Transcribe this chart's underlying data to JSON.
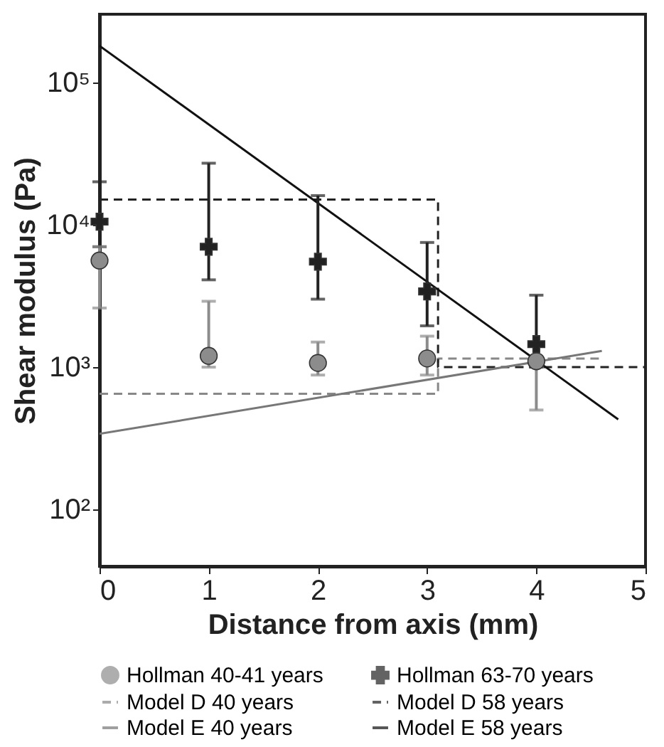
{
  "chart_data": {
    "type": "scatter",
    "xlabel": "Distance from axis (mm)",
    "ylabel": "Shear modulus (Pa)",
    "xlim": [
      0,
      5
    ],
    "xticks": [
      0,
      1,
      2,
      3,
      4,
      5
    ],
    "log": "y",
    "ylim": [
      40,
      300000
    ],
    "yticks": [
      {
        "value": 100,
        "label": "10²"
      },
      {
        "value": 1000,
        "label": "10³"
      },
      {
        "value": 10000,
        "label": "10⁴"
      },
      {
        "value": 100000,
        "label": "10⁵"
      }
    ],
    "grid": false,
    "legend": "bottom",
    "series": [
      {
        "name": "Hollman 40-41 years",
        "marker": "circle",
        "color": "#8c8c8c",
        "x": [
          0,
          1,
          2,
          3,
          4
        ],
        "values": [
          5600,
          1200,
          1070,
          1150,
          1100
        ],
        "errors": [
          [
            2600,
            7000
          ],
          [
            1000,
            2900
          ],
          [
            880,
            1500
          ],
          [
            880,
            1650
          ],
          [
            500,
            1400
          ]
        ]
      },
      {
        "name": "Hollman 63-70 years",
        "marker": "cross",
        "color": "#222222",
        "x": [
          0,
          1,
          2,
          3,
          4
        ],
        "values": [
          10500,
          7000,
          5500,
          3400,
          1450
        ],
        "errors": [
          [
            7000,
            20000
          ],
          [
            4100,
            27000
          ],
          [
            3000,
            16000
          ],
          [
            1950,
            7500
          ],
          [
            1000,
            3200
          ]
        ]
      },
      {
        "name": "Model D 40 years",
        "type": "line",
        "line_style": "dashed",
        "color": "#888888",
        "x": [
          0,
          3.1,
          3.1,
          4.6
        ],
        "values": [
          650,
          650,
          1150,
          1150
        ]
      },
      {
        "name": "Model D 58 years",
        "type": "line",
        "line_style": "dashed",
        "color": "#222222",
        "x": [
          0,
          3.1,
          3.1,
          5
        ],
        "values": [
          15000,
          15000,
          1000,
          1000
        ]
      },
      {
        "name": "Model E 40 years",
        "type": "line",
        "line_style": "solid",
        "color": "#777777",
        "x": [
          0,
          4.6
        ],
        "values": [
          340,
          1300
        ]
      },
      {
        "name": "Model E 58 years",
        "type": "line",
        "line_style": "solid",
        "color": "#111111",
        "x": [
          0,
          4.75
        ],
        "values": [
          180000,
          430
        ]
      }
    ]
  }
}
